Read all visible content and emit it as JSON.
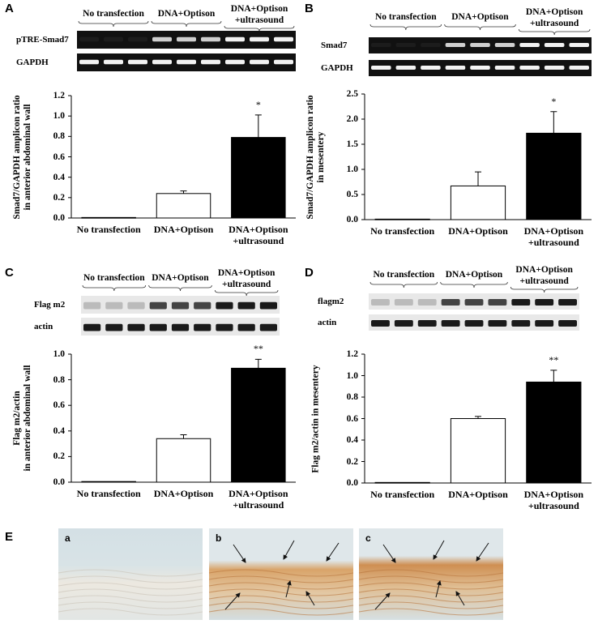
{
  "chart_data": [
    {
      "type": "bar",
      "panel_label": "A",
      "y_label": "Smad7/GAPDH amplicon ratio\nin anterior abdominal wall",
      "categories": [
        "No transfection",
        "DNA+Optison",
        "DNA+Optison\n+ultrasound"
      ],
      "values": [
        0.005,
        0.24,
        0.79
      ],
      "errors": [
        0,
        0.025,
        0.22
      ],
      "colors": [
        "#ffffff",
        "#ffffff",
        "#000000"
      ],
      "ylim": [
        0,
        1.2
      ],
      "yticks": [
        {
          "value": 0,
          "label": "0.0"
        },
        0.2,
        0.4,
        0.6,
        0.8,
        {
          "value": 1,
          "label": "1.0"
        },
        1.2
      ],
      "annotations": [
        {
          "category": "DNA+Optison\n+ultrasound",
          "text": "*"
        }
      ],
      "blot_rows": [
        "pTRE-Smad7",
        "GAPDH"
      ]
    },
    {
      "type": "bar",
      "panel_label": "B",
      "y_label": "Smad7/GAPDH amplicon ratio\nin mesentery",
      "categories": [
        "No transfection",
        "DNA+Optison",
        "DNA+Optison\n+ultrasound"
      ],
      "values": [
        0.01,
        0.67,
        1.72
      ],
      "errors": [
        0,
        0.28,
        0.43
      ],
      "colors": [
        "#ffffff",
        "#ffffff",
        "#000000"
      ],
      "ylim": [
        0,
        2.5
      ],
      "yticks": [
        {
          "value": 0,
          "label": "0.0"
        },
        0.5,
        {
          "value": 1,
          "label": "1.0"
        },
        1.5,
        {
          "value": 2,
          "label": "2.0"
        },
        2.5
      ],
      "annotations": [
        {
          "category": "DNA+Optison\n+ultrasound",
          "text": "*"
        }
      ],
      "blot_rows": [
        "Smad7",
        "GAPDH"
      ]
    },
    {
      "type": "bar",
      "panel_label": "C",
      "y_label": "Flag m2/actin\nin anterior abdominal wall",
      "categories": [
        "No transfection",
        "DNA+Optison",
        "DNA+Optison\n+ultrasound"
      ],
      "values": [
        0.005,
        0.34,
        0.89
      ],
      "errors": [
        0,
        0.03,
        0.07
      ],
      "colors": [
        "#ffffff",
        "#ffffff",
        "#000000"
      ],
      "ylim": [
        0,
        1
      ],
      "yticks": [
        {
          "value": 0,
          "label": "0.0"
        },
        0.2,
        0.4,
        0.6,
        0.8,
        {
          "value": 1,
          "label": "1.0"
        }
      ],
      "annotations": [
        {
          "category": "DNA+Optison\n+ultrasound",
          "text": "**"
        }
      ],
      "blot_rows": [
        "Flag m2",
        "actin"
      ]
    },
    {
      "type": "bar",
      "panel_label": "D",
      "y_label": "Flag m2/actin in mesentery",
      "categories": [
        "No transfection",
        "DNA+Optison",
        "DNA+Optison\n+ultrasound"
      ],
      "values": [
        0.005,
        0.6,
        0.94
      ],
      "errors": [
        0,
        0.02,
        0.11
      ],
      "colors": [
        "#ffffff",
        "#ffffff",
        "#000000"
      ],
      "ylim": [
        0,
        1.2
      ],
      "yticks": [
        {
          "value": 0,
          "label": "0.0"
        },
        0.2,
        0.4,
        0.6,
        0.8,
        {
          "value": 1,
          "label": "1.0"
        },
        1.2
      ],
      "annotations": [
        {
          "category": "DNA+Optison\n+ultrasound",
          "text": "**"
        }
      ],
      "blot_rows": [
        "flagm2",
        "actin"
      ]
    }
  ],
  "micrographs": {
    "panel_label": "E",
    "labels": [
      "a",
      "b",
      "c"
    ]
  }
}
